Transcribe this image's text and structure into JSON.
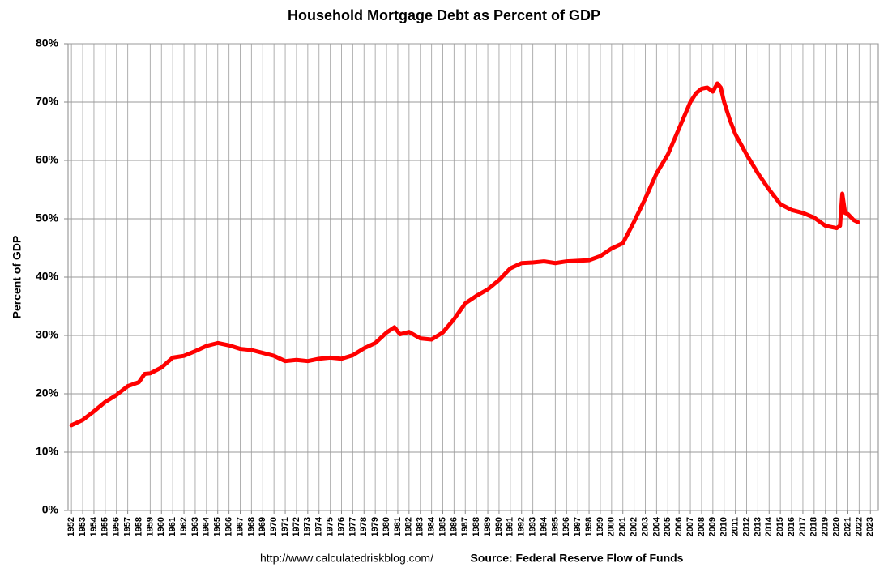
{
  "chart_data": {
    "type": "line",
    "title": "Household Mortgage Debt as Percent of GDP",
    "y_label": "Percent of GDP",
    "footer_url": "http://www.calculatedriskblog.com/",
    "footer_source": "Source: Federal Reserve Flow of Funds",
    "grid": true,
    "xlim": [
      1951.7,
      2023.7
    ],
    "ylim": [
      0,
      80
    ],
    "yticks": [
      {
        "value": 0,
        "label": "0%"
      },
      {
        "value": 10,
        "label": "10%"
      },
      {
        "value": 20,
        "label": "20%"
      },
      {
        "value": 30,
        "label": "30%"
      },
      {
        "value": 40,
        "label": "40%"
      },
      {
        "value": 50,
        "label": "50%"
      },
      {
        "value": 60,
        "label": "60%"
      },
      {
        "value": 70,
        "label": "70%"
      },
      {
        "value": 80,
        "label": "80%"
      }
    ],
    "xticks": [
      1952,
      1953,
      1954,
      1955,
      1956,
      1957,
      1958,
      1959,
      1960,
      1961,
      1962,
      1963,
      1964,
      1965,
      1966,
      1967,
      1968,
      1969,
      1970,
      1971,
      1972,
      1973,
      1974,
      1975,
      1976,
      1977,
      1978,
      1979,
      1980,
      1981,
      1982,
      1983,
      1984,
      1985,
      1986,
      1987,
      1988,
      1989,
      1990,
      1991,
      1992,
      1993,
      1994,
      1995,
      1996,
      1997,
      1998,
      1999,
      2000,
      2001,
      2002,
      2003,
      2004,
      2005,
      2006,
      2007,
      2008,
      2009,
      2010,
      2011,
      2012,
      2013,
      2014,
      2015,
      2016,
      2017,
      2018,
      2019,
      2020,
      2021,
      2022,
      2023
    ],
    "series": [
      {
        "name": "Household Mortgage Debt",
        "color": "#ff0000",
        "x": [
          1952,
          1953,
          1954,
          1955,
          1956,
          1957,
          1958,
          1958.5,
          1959,
          1960,
          1961,
          1962,
          1963,
          1964,
          1965,
          1966,
          1967,
          1968,
          1969,
          1970,
          1971,
          1972,
          1973,
          1974,
          1975,
          1976,
          1977,
          1978,
          1979,
          1980,
          1980.7,
          1981.2,
          1982,
          1983,
          1984,
          1985,
          1986,
          1987,
          1988,
          1989,
          1990,
          1991,
          1992,
          1993,
          1994,
          1995,
          1996,
          1997,
          1998,
          1999,
          2000,
          2001,
          2002,
          2003,
          2004,
          2005,
          2006,
          2007,
          2007.5,
          2008,
          2008.5,
          2009,
          2009.4,
          2009.7,
          2010,
          2010.5,
          2011,
          2012,
          2013,
          2014,
          2015,
          2016,
          2017,
          2018,
          2019,
          2020,
          2020.3,
          2020.5,
          2020.75,
          2021,
          2021.5,
          2021.9
        ],
        "values": [
          14.6,
          15.5,
          17.0,
          18.6,
          19.8,
          21.3,
          22.0,
          23.4,
          23.5,
          24.5,
          26.2,
          26.5,
          27.3,
          28.2,
          28.7,
          28.3,
          27.7,
          27.5,
          27.0,
          26.5,
          25.6,
          25.8,
          25.6,
          26.0,
          26.2,
          26.0,
          26.6,
          27.8,
          28.7,
          30.5,
          31.4,
          30.2,
          30.6,
          29.5,
          29.3,
          30.5,
          32.8,
          35.5,
          36.8,
          37.9,
          39.5,
          41.5,
          42.4,
          42.5,
          42.7,
          42.4,
          42.7,
          42.8,
          42.9,
          43.6,
          44.9,
          45.8,
          49.5,
          53.5,
          57.8,
          61.0,
          65.5,
          70.0,
          71.5,
          72.3,
          72.5,
          71.8,
          73.2,
          72.5,
          70.0,
          67.0,
          64.5,
          61.0,
          57.8,
          55.0,
          52.5,
          51.5,
          51.0,
          50.2,
          48.8,
          48.4,
          48.8,
          54.3,
          51.0,
          50.8,
          49.8,
          49.4
        ]
      }
    ]
  }
}
